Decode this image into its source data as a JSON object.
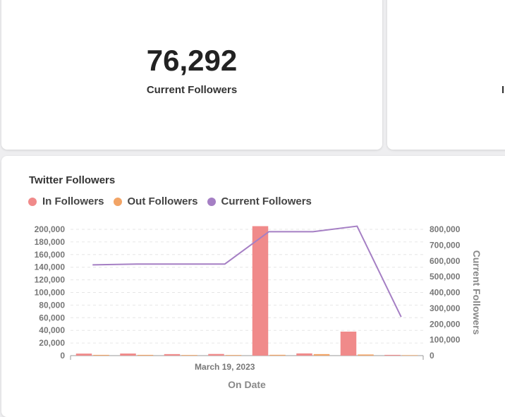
{
  "kpi": {
    "value": "76,292",
    "label": "Current Followers",
    "second_label_fragment": "I"
  },
  "chart_data": {
    "type": "bar",
    "title": "Twitter Followers",
    "legend_position": "top-left",
    "xlabel": "On Date",
    "ylabel": "",
    "y2label": "Current Followers",
    "x_tick_labels": [
      {
        "category_index": 3.5,
        "label": "March 19, 2023"
      }
    ],
    "ylim": [
      0,
      200000
    ],
    "y2lim": [
      0,
      800000
    ],
    "y_ticks": [
      "0",
      "20,000",
      "40,000",
      "60,000",
      "80,000",
      "100,000",
      "120,000",
      "140,000",
      "160,000",
      "180,000",
      "200,000"
    ],
    "y2_ticks": [
      "0",
      "100,000",
      "200,000",
      "300,000",
      "400,000",
      "500,000",
      "600,000",
      "700,000",
      "800,000"
    ],
    "categories": [
      "1",
      "2",
      "3",
      "4",
      "5",
      "6",
      "7",
      "8"
    ],
    "series": [
      {
        "name": "In Followers",
        "type": "bar",
        "axis": "left",
        "color": "#f08a8a",
        "values": [
          3200,
          3300,
          2400,
          2600,
          205000,
          3500,
          38000,
          1200
        ]
      },
      {
        "name": "Out Followers",
        "type": "bar",
        "axis": "left",
        "color": "#f2a466",
        "values": [
          1200,
          1200,
          1000,
          1000,
          1300,
          2400,
          1800,
          800
        ]
      },
      {
        "name": "Current Followers",
        "type": "line",
        "axis": "right",
        "color": "#a57fc4",
        "values": [
          575000,
          580000,
          580000,
          580000,
          785000,
          785000,
          820000,
          245000
        ]
      }
    ]
  }
}
